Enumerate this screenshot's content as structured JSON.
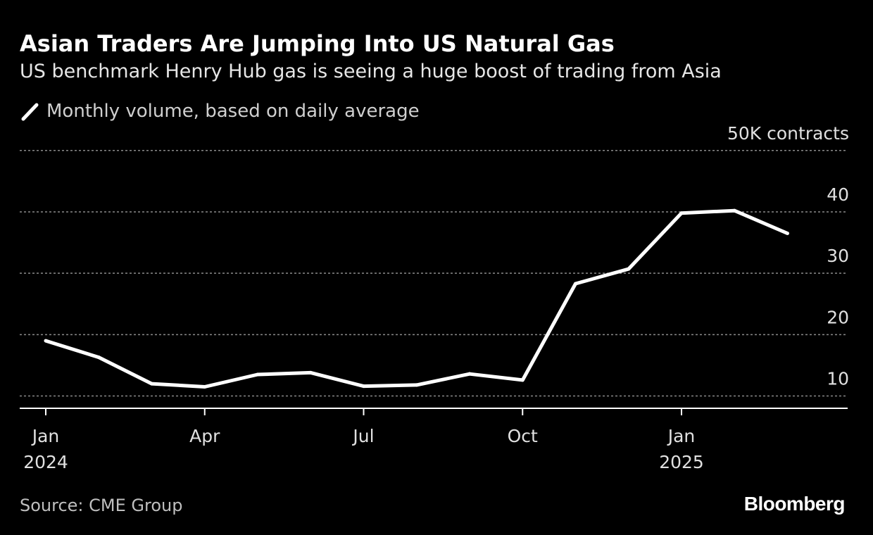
{
  "header": {
    "title": "Asian Traders Are Jumping Into US Natural Gas",
    "subtitle": "US benchmark Henry Hub gas is seeing a huge boost of trading from Asia"
  },
  "footer": {
    "source": "Source: CME Group",
    "brand": "Bloomberg"
  },
  "colors": {
    "background": "#000000",
    "line": "#ffffff",
    "grid": "#8a8a8a",
    "axis_text": "#e0e0e0"
  },
  "chart_data": {
    "type": "line",
    "title": "Asian Traders Are Jumping Into US Natural Gas",
    "subtitle": "US benchmark Henry Hub gas is seeing a huge boost of trading from Asia",
    "unit_label": "50K contracts",
    "xlabel": "",
    "ylabel": "",
    "ylim": [
      8,
      50
    ],
    "y_ticks": [
      {
        "value": 50,
        "label": "50K contracts"
      },
      {
        "value": 40,
        "label": "40"
      },
      {
        "value": 30,
        "label": "30"
      },
      {
        "value": 20,
        "label": "20"
      },
      {
        "value": 10,
        "label": "10"
      }
    ],
    "x_ticks": [
      {
        "index": 0,
        "label": "Jan",
        "sublabel": "2024"
      },
      {
        "index": 3,
        "label": "Apr",
        "sublabel": ""
      },
      {
        "index": 6,
        "label": "Jul",
        "sublabel": ""
      },
      {
        "index": 9,
        "label": "Oct",
        "sublabel": ""
      },
      {
        "index": 12,
        "label": "Jan",
        "sublabel": "2025"
      }
    ],
    "grid": true,
    "legend": {
      "position": "top-left",
      "entries": [
        "Monthly volume, based on daily average"
      ]
    },
    "series": [
      {
        "name": "Monthly volume, based on daily average",
        "x": [
          "Jan 2024",
          "Feb 2024",
          "Mar 2024",
          "Apr 2024",
          "May 2024",
          "Jun 2024",
          "Jul 2024",
          "Aug 2024",
          "Sep 2024",
          "Oct 2024",
          "Nov 2024",
          "Dec 2024",
          "Jan 2025",
          "Feb 2025",
          "Mar 2025"
        ],
        "values": [
          19,
          16.3,
          12,
          11.5,
          13.5,
          13.8,
          11.6,
          11.8,
          13.6,
          12.6,
          28.3,
          30.7,
          39.8,
          40.2,
          36.5
        ]
      }
    ]
  }
}
